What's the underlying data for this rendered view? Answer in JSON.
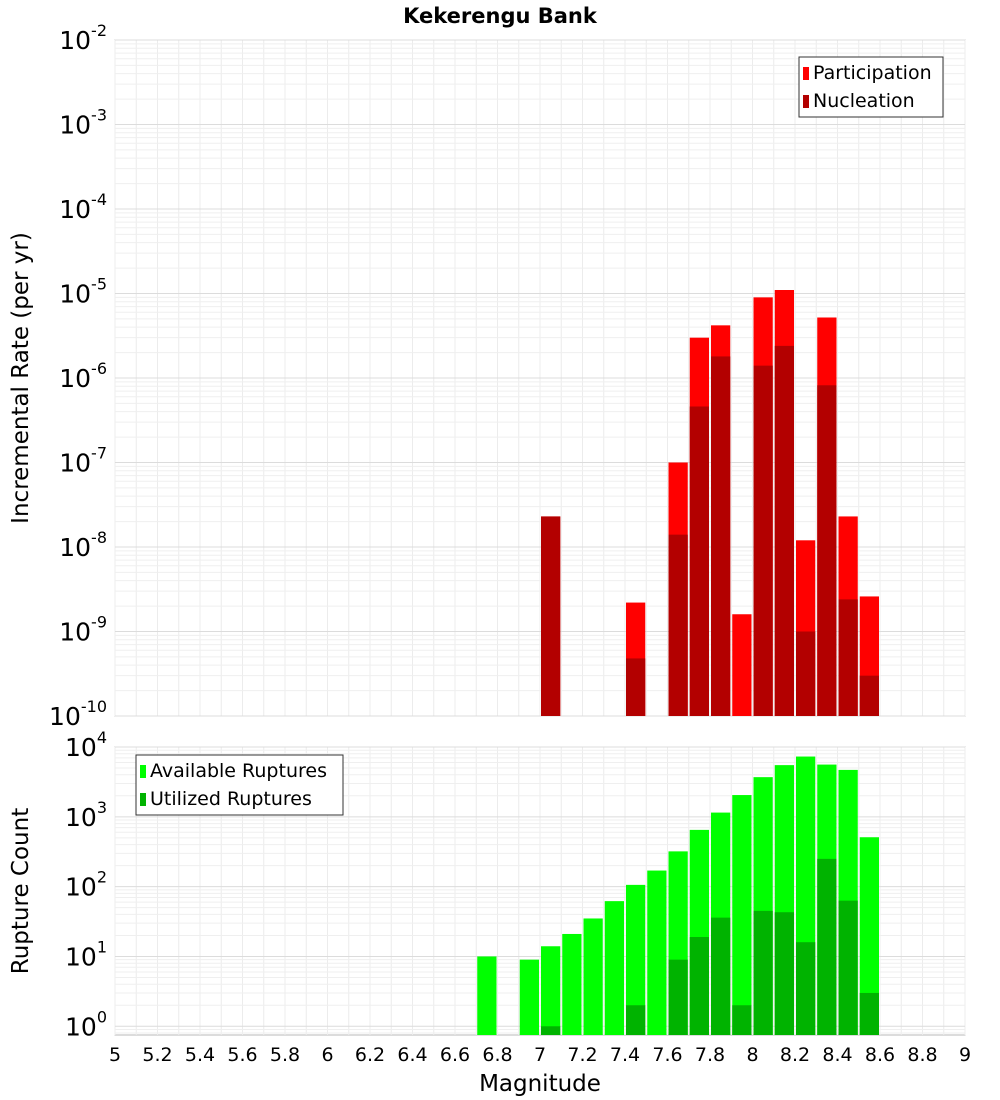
{
  "title": "Kekerengu Bank",
  "chart_data": [
    {
      "type": "bar",
      "ylabel": "Incremental Rate (per yr)",
      "yscale": "log",
      "ylim": [
        1e-10,
        0.01
      ],
      "xlim": [
        5,
        9
      ],
      "grid": true,
      "legend_position": "top-right",
      "ytick_exponents": [
        "-10",
        "-9",
        "-8",
        "-7",
        "-6",
        "-5",
        "-4",
        "-3",
        "-2"
      ],
      "series": [
        {
          "name": "Participation",
          "color": "#ff0000",
          "x": [
            7.05,
            7.45,
            7.65,
            7.75,
            7.85,
            7.95,
            8.05,
            8.15,
            8.25,
            8.35,
            8.45,
            8.55
          ],
          "values": [
            2.3e-08,
            2.2e-09,
            1e-07,
            3e-06,
            4.2e-06,
            1.6e-09,
            9e-06,
            1.1e-05,
            1.2e-08,
            5.2e-06,
            2.3e-08,
            2.6e-09
          ]
        },
        {
          "name": "Nucleation",
          "color": "#b30000",
          "x": [
            7.05,
            7.45,
            7.65,
            7.75,
            7.85,
            7.95,
            8.05,
            8.15,
            8.25,
            8.35,
            8.45,
            8.55
          ],
          "values": [
            2.3e-08,
            4.8e-10,
            1.4e-08,
            4.6e-07,
            1.8e-06,
            1e-10,
            1.4e-06,
            2.4e-06,
            1e-09,
            8.2e-07,
            2.4e-09,
            3e-10
          ]
        }
      ]
    },
    {
      "type": "bar",
      "xlabel": "Magnitude",
      "ylabel": "Rupture Count",
      "yscale": "log",
      "ylim": [
        0.75,
        10000
      ],
      "xlim": [
        5,
        9
      ],
      "grid": true,
      "legend_position": "top-left",
      "ytick_exponents": [
        "0",
        "1",
        "2",
        "3",
        "4"
      ],
      "xticks": [
        "5",
        "5.2",
        "5.4",
        "5.6",
        "5.8",
        "6",
        "6.2",
        "6.4",
        "6.6",
        "6.8",
        "7",
        "7.2",
        "7.4",
        "7.6",
        "7.8",
        "8",
        "8.2",
        "8.4",
        "8.6",
        "8.8",
        "9"
      ],
      "series": [
        {
          "name": "Available Ruptures",
          "color": "#00ff00",
          "x": [
            6.75,
            6.95,
            7.05,
            7.15,
            7.25,
            7.35,
            7.45,
            7.55,
            7.65,
            7.75,
            7.85,
            7.95,
            8.05,
            8.15,
            8.25,
            8.35,
            8.45,
            8.55
          ],
          "values": [
            10,
            9,
            14,
            21,
            35,
            62,
            106,
            170,
            320,
            650,
            1150,
            2050,
            3700,
            5500,
            7300,
            5600,
            4700,
            510
          ]
        },
        {
          "name": "Utilized Ruptures",
          "color": "#00b300",
          "x": [
            7.05,
            7.45,
            7.65,
            7.75,
            7.85,
            7.95,
            8.05,
            8.15,
            8.25,
            8.35,
            8.45,
            8.55
          ],
          "values": [
            1,
            2,
            9,
            19,
            36,
            2,
            45,
            43,
            16,
            250,
            63,
            3
          ]
        }
      ]
    }
  ]
}
